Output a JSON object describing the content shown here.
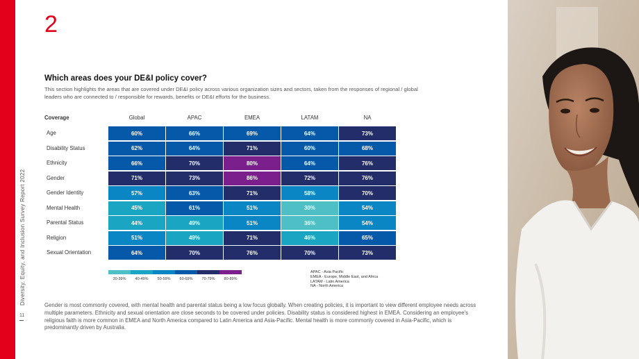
{
  "page": {
    "section_number": "2",
    "sidebar_text": "Diversity, Equity, and Inclusion Survey Report 2022",
    "page_number": "11"
  },
  "header": {
    "title": "Which areas does your DE&I policy cover?",
    "intro": "This section highlights the areas that are covered under DE&I policy across various organization sizes and sectors, taken from the responses of regional / global leaders who are connected to / responsible for rewards, benefits or DE&I efforts for the business."
  },
  "table": {
    "columns": [
      "Coverage",
      "Global",
      "APAC",
      "EMEA",
      "LATAM",
      "NA"
    ],
    "rows": [
      {
        "label": "Age",
        "values": [
          "60%",
          "66%",
          "69%",
          "64%",
          "73%"
        ]
      },
      {
        "label": "Disability Status",
        "values": [
          "62%",
          "64%",
          "71%",
          "60%",
          "68%"
        ]
      },
      {
        "label": "Ethnicity",
        "values": [
          "66%",
          "70%",
          "80%",
          "64%",
          "76%"
        ]
      },
      {
        "label": "Gender",
        "values": [
          "71%",
          "73%",
          "86%",
          "72%",
          "76%"
        ]
      },
      {
        "label": "Gender Identity",
        "values": [
          "57%",
          "63%",
          "71%",
          "58%",
          "70%"
        ]
      },
      {
        "label": "Mental Health",
        "values": [
          "45%",
          "61%",
          "51%",
          "30%",
          "54%"
        ]
      },
      {
        "label": "Parental Status",
        "values": [
          "44%",
          "49%",
          "51%",
          "36%",
          "54%"
        ]
      },
      {
        "label": "Religion",
        "values": [
          "51%",
          "49%",
          "71%",
          "46%",
          "65%"
        ]
      },
      {
        "label": "Sexual Orientation",
        "values": [
          "64%",
          "70%",
          "76%",
          "70%",
          "73%"
        ]
      }
    ]
  },
  "legend": {
    "items": [
      {
        "label": "30-39%",
        "color": "#4ebfc4"
      },
      {
        "label": "40-49%",
        "color": "#1aa6c2"
      },
      {
        "label": "50-59%",
        "color": "#0a86c4"
      },
      {
        "label": "60-69%",
        "color": "#0559a8"
      },
      {
        "label": "70-79%",
        "color": "#222d6a"
      },
      {
        "label": "80-89%",
        "color": "#7a1f8c"
      }
    ],
    "abbreviations": [
      "APAC - Asia Pacific",
      "EMEA - Europe, Middle East, and Africa",
      "LATAM - Latin America",
      "NA - North America"
    ]
  },
  "summary": "Gender is most commonly covered, with mental health and parental status being a low focus globally. When creating policies, it is important to view different employee needs across multiple parameters. Ethnicity and sexual orientation are close seconds to be covered under policies. Disability status is considered highest in EMEA. Considering an employee's religious faith is more common in EMEA and North America compared to Latin America and Asia-Pacific. Mental health is more commonly covered in Asia-Pacific, which is predominantly driven by Australia.",
  "colors": {
    "accent": "#e3001b"
  }
}
